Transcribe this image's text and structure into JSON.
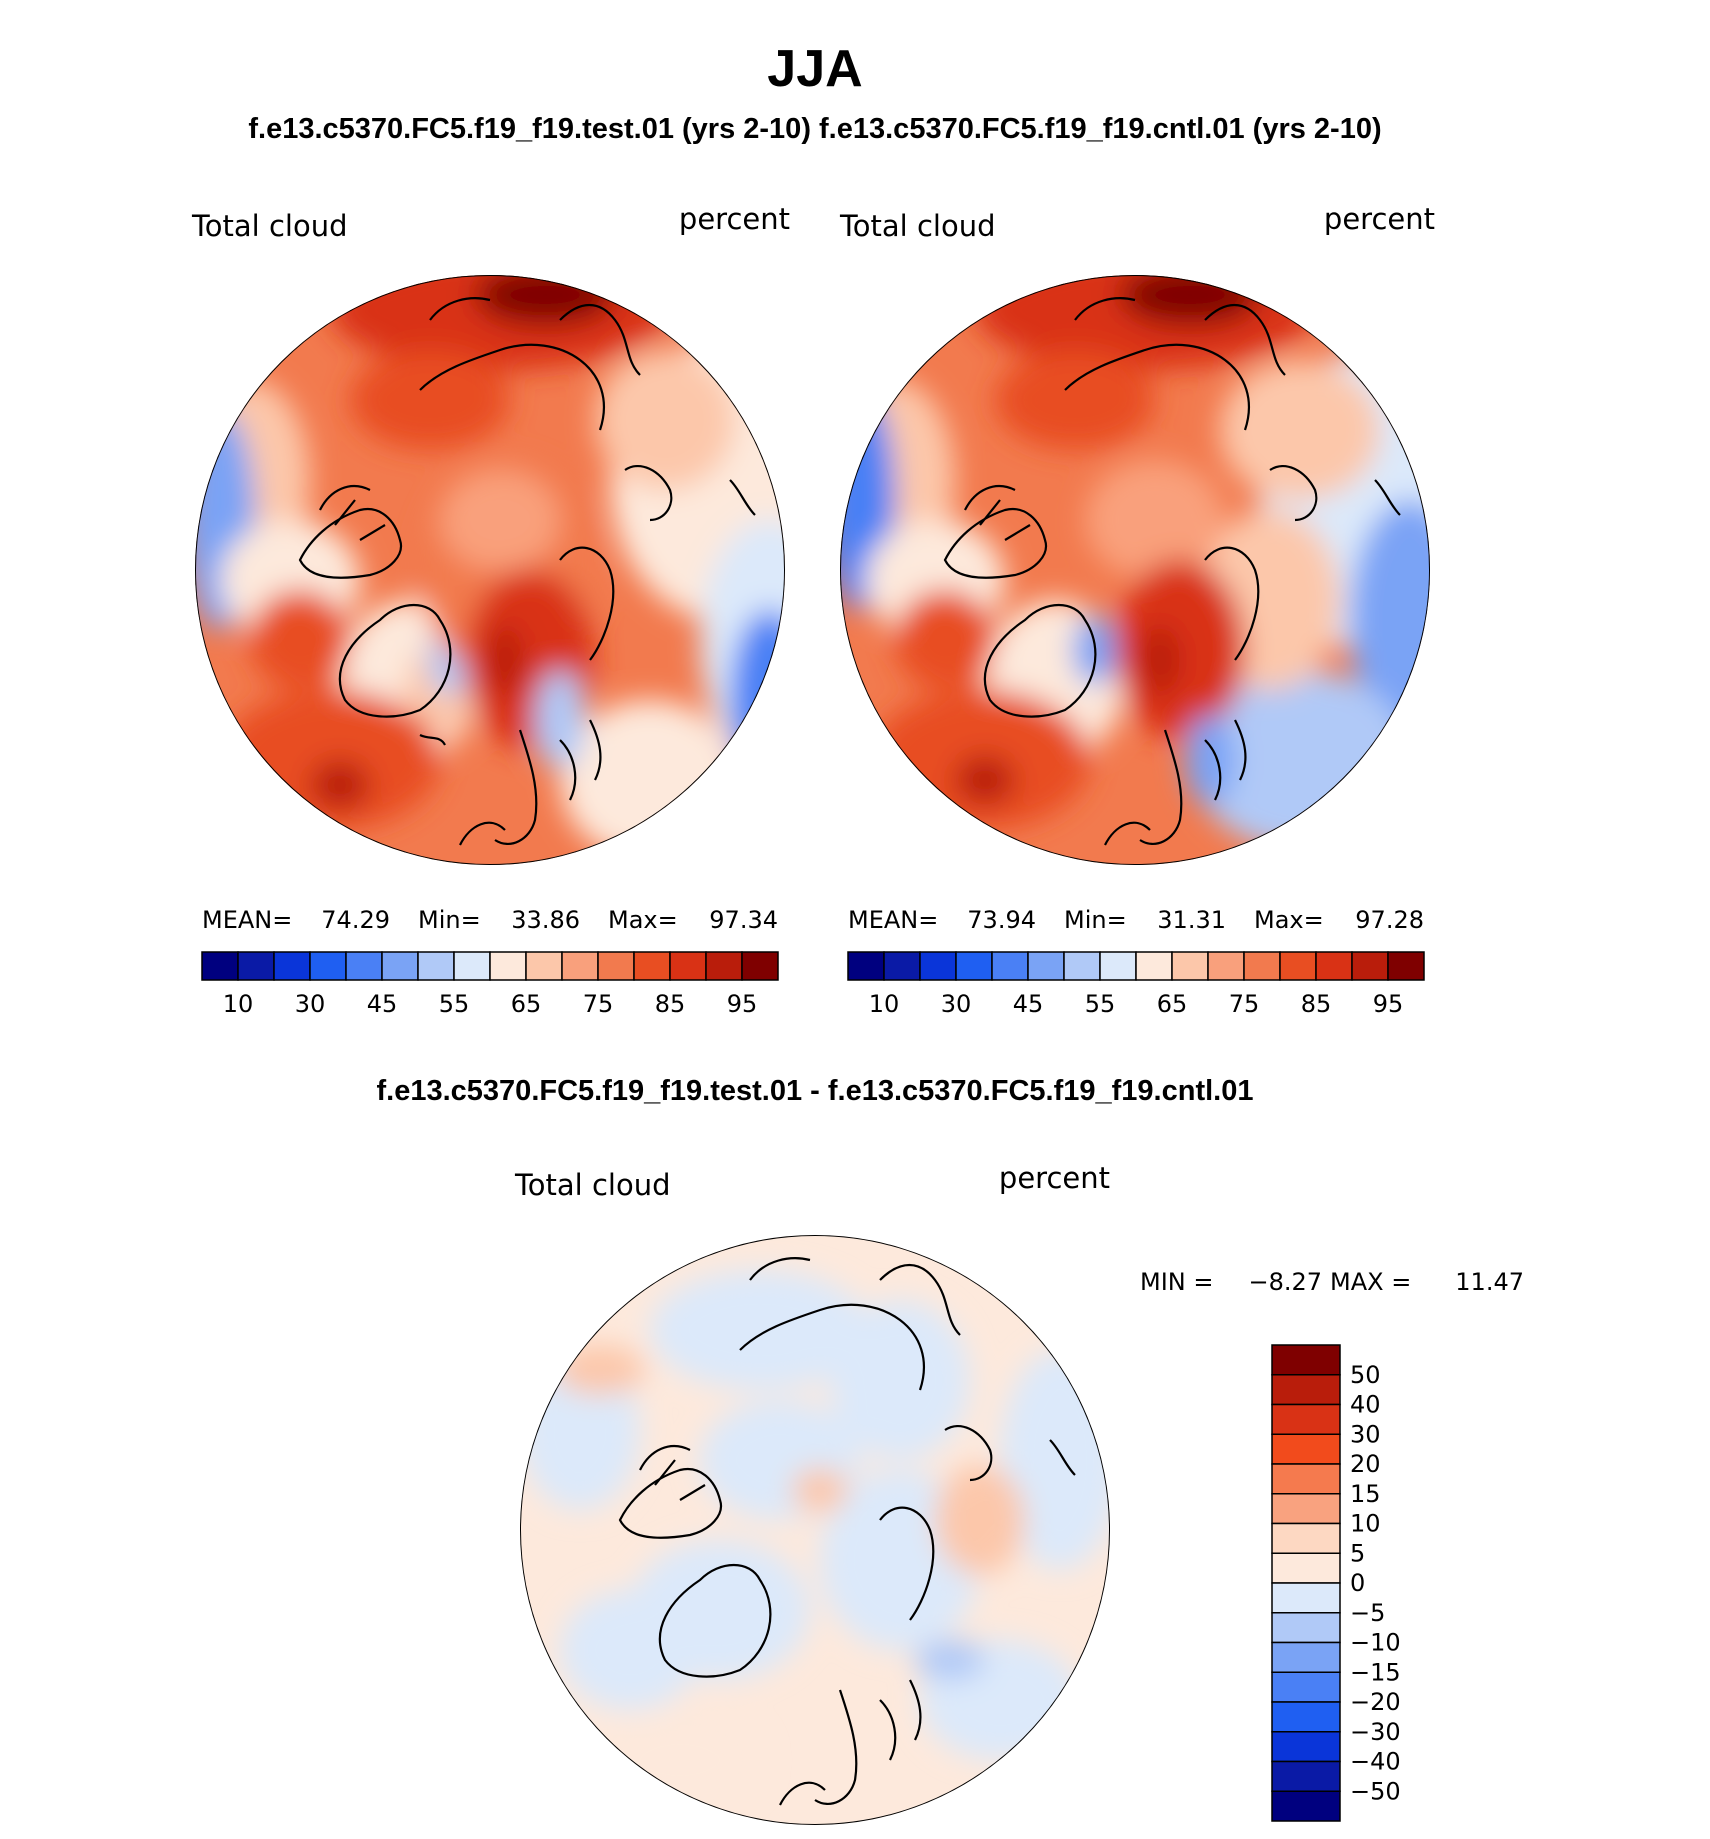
{
  "page": {
    "title": "JJA",
    "top_header": "f.e13.c5370.FC5.f19_f19.test.01 (yrs 2-10) f.e13.c5370.FC5.f19_f19.cntl.01 (yrs 2-10)",
    "diff_header": "f.e13.c5370.FC5.f19_f19.test.01 - f.e13.c5370.FC5.f19_f19.cntl.01"
  },
  "chart_data": [
    {
      "type": "heatmap",
      "projection": "north-polar-stereographic",
      "panel": "test",
      "left_label": "Total cloud",
      "right_label": "percent",
      "stats": {
        "mean_label": "MEAN=",
        "mean": "74.29",
        "min_label": "Min=",
        "min": "33.86",
        "max_label": "Max=",
        "max": "97.34"
      },
      "colorbar": {
        "orientation": "horizontal",
        "tick_labels": [
          "10",
          "30",
          "45",
          "55",
          "65",
          "75",
          "85",
          "95"
        ],
        "colors": [
          "#00007f",
          "#0a1aa6",
          "#0a35d9",
          "#1f5ff2",
          "#4a80f5",
          "#7aa3f5",
          "#b0c9f7",
          "#dce9fa",
          "#fde9dc",
          "#fcc7aa",
          "#f9a07c",
          "#f27a4e",
          "#e84e22",
          "#d93215",
          "#b91d0b",
          "#7f0000"
        ]
      }
    },
    {
      "type": "heatmap",
      "projection": "north-polar-stereographic",
      "panel": "cntl",
      "left_label": "Total cloud",
      "right_label": "percent",
      "stats": {
        "mean_label": "MEAN=",
        "mean": "73.94",
        "min_label": "Min=",
        "min": "31.31",
        "max_label": "Max=",
        "max": "97.28"
      },
      "colorbar": {
        "orientation": "horizontal",
        "tick_labels": [
          "10",
          "30",
          "45",
          "55",
          "65",
          "75",
          "85",
          "95"
        ],
        "colors": [
          "#00007f",
          "#0a1aa6",
          "#0a35d9",
          "#1f5ff2",
          "#4a80f5",
          "#7aa3f5",
          "#b0c9f7",
          "#dce9fa",
          "#fde9dc",
          "#fcc7aa",
          "#f9a07c",
          "#f27a4e",
          "#e84e22",
          "#d93215",
          "#b91d0b",
          "#7f0000"
        ]
      }
    },
    {
      "type": "heatmap",
      "projection": "north-polar-stereographic",
      "panel": "difference",
      "left_label": "Total cloud",
      "right_label": "percent",
      "stats": {
        "min_label": "MIN =",
        "min": "−8.27",
        "max_label": "MAX =",
        "max": "11.47"
      },
      "colorbar": {
        "orientation": "vertical",
        "tick_labels": [
          "50",
          "40",
          "30",
          "20",
          "15",
          "10",
          "5",
          "0",
          "−5",
          "−10",
          "−15",
          "−20",
          "−30",
          "−40",
          "−50"
        ],
        "colors": [
          "#7f0000",
          "#b91d0b",
          "#d93215",
          "#f24b1c",
          "#f57a4e",
          "#f9a27f",
          "#fdd8c2",
          "#fde9dc",
          "#dce9fa",
          "#b0c9f7",
          "#7aa3f5",
          "#4a80f5",
          "#1f5ff2",
          "#0a35d9",
          "#0a1aa6",
          "#00007f"
        ]
      }
    }
  ]
}
